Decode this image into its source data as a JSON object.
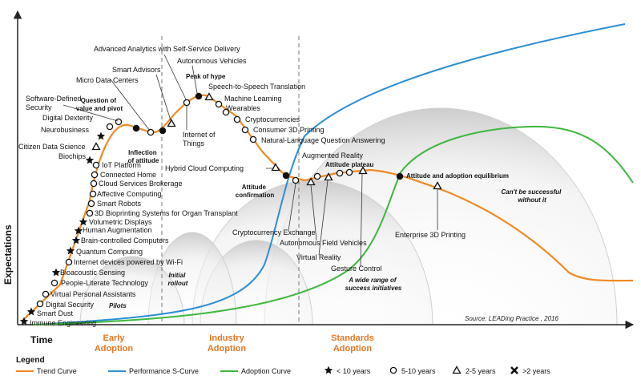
{
  "axes": {
    "y_label": "Expectations",
    "x_label": "Time"
  },
  "phases": [
    {
      "line1": "Early",
      "line2": "Adoption"
    },
    {
      "line1": "Industry",
      "line2": "Adoption"
    },
    {
      "line1": "Standards",
      "line2": "Adoption"
    }
  ],
  "source": "Source: LEADing Practice , 2016",
  "legend": {
    "title": "Legend",
    "items": [
      {
        "label": "Trend Curve",
        "color": "#f08a24"
      },
      {
        "label": "Performance S-Curve",
        "color": "#2a8fd6"
      },
      {
        "label": "Adoption Curve",
        "color": "#3cb83c"
      },
      {
        "label": "< 10 years",
        "symbol": "star"
      },
      {
        "label": "5-10 years",
        "symbol": "circle"
      },
      {
        "label": "2-5 years",
        "symbol": "triangle"
      },
      {
        "label": ">2 years",
        "symbol": "cross"
      }
    ]
  },
  "annotations": {
    "question": "Question of value and pivot",
    "inflection": "Inflection of attitude",
    "peak": "Peak of hype",
    "confirmation": "Attitude confirmation",
    "plateau": "Attitude plateau",
    "equilibrium": "Attitude and adoption equilibrium",
    "cant": "Can't be successful without it",
    "pilots": "Pilots",
    "initial": "Initial rollout",
    "range": "A wide range of success initiatives"
  },
  "technologies": {
    "immune": "Immune Engineering",
    "smart_dust": "Smart Dust",
    "digital_security": "Digital Security",
    "vpa": "Virtual Personal Assistants",
    "people_literate": "People-Literate Technology",
    "bioacoustic": "Bioacoustic Sensing",
    "internet_devices": "Internet devices powered by Wi-Fi",
    "quantum": "Quantum Computing",
    "brain": "Brain-controlled Computers",
    "human_aug": "Human Augmentation",
    "volumetric": "Volumetric Displays",
    "bioprinting": "3D Bioprinting Systems for Organ Transplant",
    "smart_robots": "Smart Robots",
    "affective": "Affective Computing",
    "cloud_brokerage": "Cloud Services Brokerage",
    "connected_home": "Connected Home",
    "iot_platform": "IoT Platform",
    "biochips": "Biochips",
    "citizen_ds": "Citizen Data Science",
    "neurobusiness": "Neurobusiness",
    "digital_dexterity": "Digital Dexterity",
    "sds": "Software-Defined Security",
    "micro_dc": "Micro Data Centers",
    "smart_advisors": "Smart Advisors",
    "advanced_analytics": "Advanced Analytics with Self-Service Delivery",
    "autonomous_vehicles": "Autonomous Vehicles",
    "iot": "Internet of Things",
    "speech": "Speech-to-Speech Translation",
    "ml": "Machine Learning",
    "wearables": "Wearables",
    "crypto": "Cryptocurrencies",
    "consumer_3d": "Consumer 3D Printing",
    "nlqa": "Natural-Language Question Answering",
    "hybrid_cloud": "Hybrid Cloud Computing",
    "crypto_exchange": "Cryptocurrency Exchange",
    "augmented_reality": "Augmented Reality",
    "autonomous_fv": "Autonomous Field Vehicles",
    "vr": "Virtual Reality",
    "gesture": "Gesture Control",
    "enterprise_3d": "Enterprise 3D Printing"
  }
}
